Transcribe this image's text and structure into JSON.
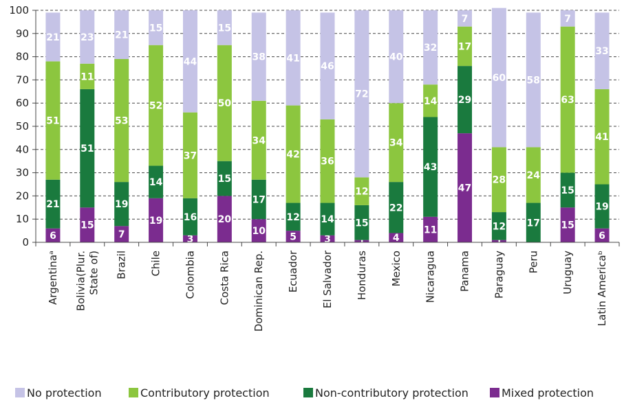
{
  "chart_data": {
    "type": "bar",
    "stacked": true,
    "categories": [
      "Argentinaᵃ",
      "Bolivia(Plur. State of)",
      "Brazil",
      "Chile",
      "Colombia",
      "Costa Rica",
      "Dominican Rep.",
      "Ecuador",
      "El Salvador",
      "Honduras",
      "Mexico",
      "Nicaragua",
      "Panama",
      "Paraguay",
      "Peru",
      "Uruguay",
      "Latin Americaᵇ"
    ],
    "category_lines": [
      [
        "Argentinaᵃ"
      ],
      [
        "Bolivia(Plur.",
        "State of)"
      ],
      [
        "Brazil"
      ],
      [
        "Chile"
      ],
      [
        "Colombia"
      ],
      [
        "Costa Rica"
      ],
      [
        "Dominican Rep."
      ],
      [
        "Ecuador"
      ],
      [
        "El Salvador"
      ],
      [
        "Honduras"
      ],
      [
        "Mexico"
      ],
      [
        "Nicaragua"
      ],
      [
        "Panama"
      ],
      [
        "Paraguay"
      ],
      [
        "Peru"
      ],
      [
        "Uruguay"
      ],
      [
        "Latin Americaᵇ"
      ]
    ],
    "series": [
      {
        "name": "Mixed protection",
        "color": "#7b2c8f",
        "values": [
          6,
          15,
          7,
          19,
          3,
          20,
          10,
          5,
          3,
          1,
          4,
          11,
          47,
          1,
          0,
          15,
          6
        ]
      },
      {
        "name": "Non-contributory protection",
        "color": "#1a7a3e",
        "values": [
          21,
          51,
          19,
          14,
          16,
          15,
          17,
          12,
          14,
          15,
          22,
          43,
          29,
          12,
          17,
          15,
          19
        ]
      },
      {
        "name": "Contributory protection",
        "color": "#8cc63f",
        "values": [
          51,
          11,
          53,
          52,
          37,
          50,
          34,
          42,
          36,
          12,
          34,
          14,
          17,
          28,
          24,
          63,
          41
        ]
      },
      {
        "name": "No protection",
        "color": "#c5c3e6",
        "values": [
          21,
          23,
          21,
          15,
          44,
          15,
          38,
          41,
          46,
          72,
          40,
          32,
          7,
          60,
          58,
          7,
          33
        ]
      }
    ],
    "legend_order": [
      "No protection",
      "Contributory protection",
      "Non-contributory protection",
      "Mixed protection"
    ],
    "y_ticks": [
      0,
      10,
      20,
      30,
      40,
      50,
      60,
      70,
      80,
      90,
      100
    ],
    "ylim": [
      0,
      100
    ],
    "grid": true,
    "legend_position": "bottom",
    "title": "",
    "xlabel": "",
    "ylabel": ""
  }
}
